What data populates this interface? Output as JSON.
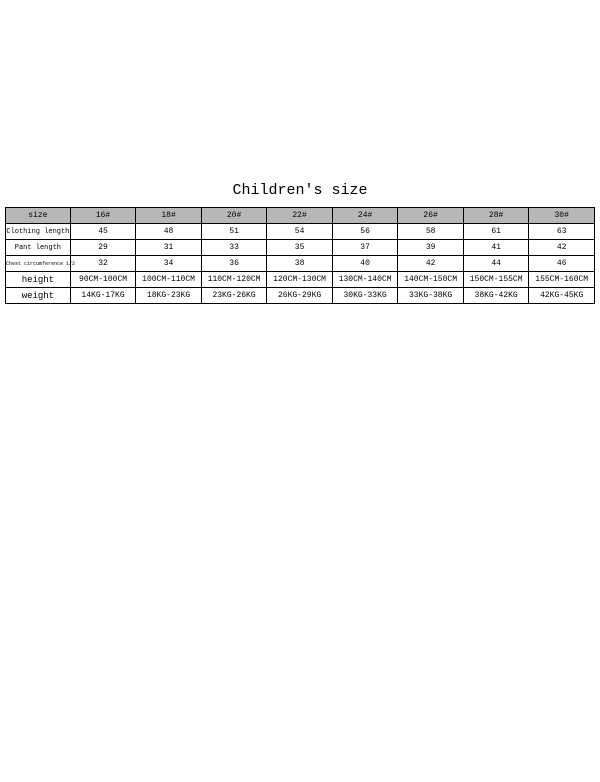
{
  "title": "Children's size",
  "table": {
    "header_bg": "#b7b7b7",
    "border_color": "#000000",
    "columns": [
      "size",
      "16#",
      "18#",
      "20#",
      "22#",
      "24#",
      "26#",
      "28#",
      "30#"
    ],
    "rows": [
      {
        "label": "Clothing length",
        "cells": [
          "45",
          "48",
          "51",
          "54",
          "56",
          "58",
          "61",
          "63"
        ]
      },
      {
        "label": "Pant length",
        "cells": [
          "29",
          "31",
          "33",
          "35",
          "37",
          "39",
          "41",
          "42"
        ]
      },
      {
        "label": "Chest circumference 1/2",
        "cells": [
          "32",
          "34",
          "36",
          "38",
          "40",
          "42",
          "44",
          "46"
        ]
      },
      {
        "label": "height",
        "cells": [
          "90CM-100CM",
          "100CM-110CM",
          "110CM-120CM",
          "120CM-130CM",
          "130CM-140CM",
          "140CM-150CM",
          "150CM-155CM",
          "155CM-160CM"
        ]
      },
      {
        "label": "weight",
        "cells": [
          "14KG-17KG",
          "18KG-23KG",
          "23KG-26KG",
          "26KG-29KG",
          "30KG-33KG",
          "33KG-38KG",
          "38KG-42KG",
          "42KG-45KG"
        ]
      }
    ]
  }
}
